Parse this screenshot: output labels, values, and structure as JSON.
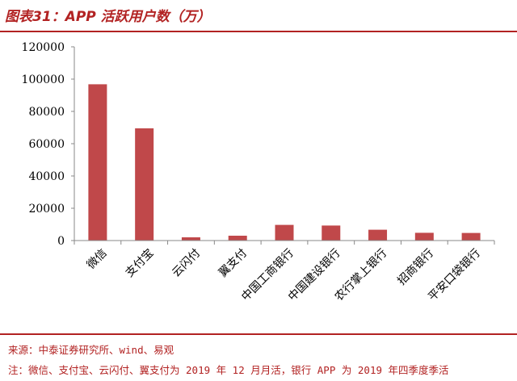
{
  "header": {
    "title": "图表31：APP 活跃用户数（万）"
  },
  "colors": {
    "accent": "#b22222",
    "bar": "#c0484a",
    "axis": "#888888"
  },
  "chart_data": {
    "type": "bar",
    "categories": [
      "微信",
      "支付宝",
      "云闪付",
      "翼支付",
      "中国工商银行",
      "中国建设银行",
      "农行掌上银行",
      "招商银行",
      "平安口袋银行"
    ],
    "values": [
      96800,
      69500,
      2000,
      3000,
      9700,
      9300,
      6700,
      4800,
      4700
    ],
    "ylim": [
      0,
      120000
    ],
    "yticks": [
      0,
      20000,
      40000,
      60000,
      80000,
      100000,
      120000
    ],
    "grid": false,
    "legend": "none"
  },
  "footer": {
    "source": "来源：中泰证券研究所、wind、易观",
    "note": "注：微信、支付宝、云闪付、翼支付为 2019 年 12 月月活，银行 APP 为 2019 年四季度季活"
  }
}
